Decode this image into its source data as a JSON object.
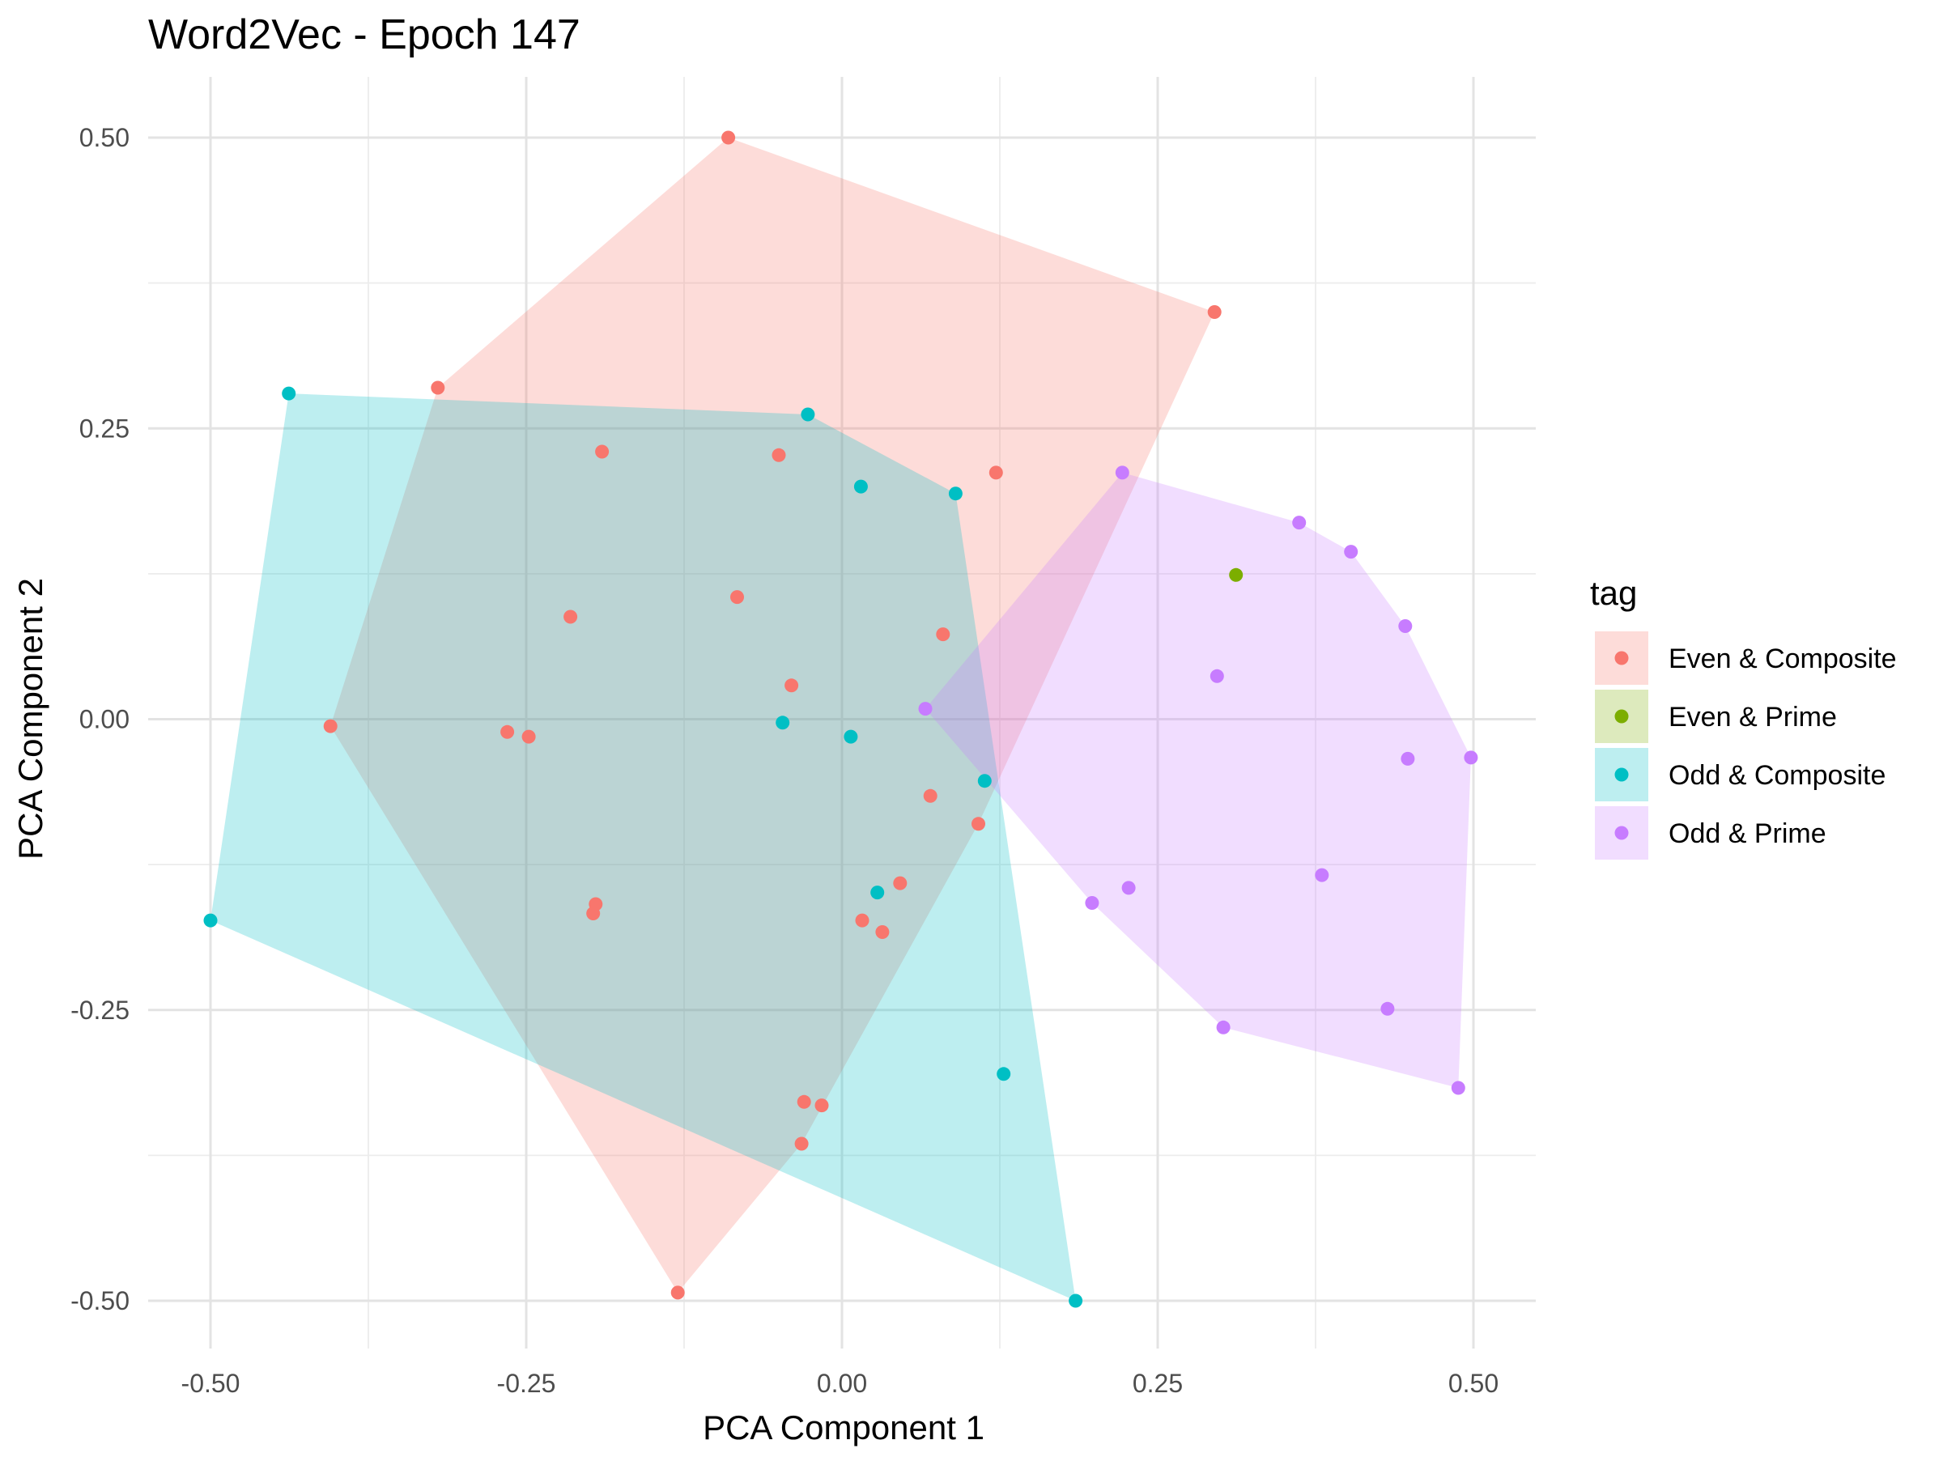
{
  "chart_data": {
    "type": "scatter",
    "title": "Word2Vec - Epoch 147",
    "xlabel": "PCA Component 1",
    "ylabel": "PCA Component 2",
    "xlim": [
      -0.55,
      0.55
    ],
    "ylim": [
      -0.54,
      0.55
    ],
    "x_ticks": [
      -0.5,
      -0.25,
      0.0,
      0.25,
      0.5
    ],
    "x_tick_labels": [
      "-0.50",
      "-0.25",
      "0.00",
      "0.25",
      "0.50"
    ],
    "y_ticks": [
      -0.5,
      -0.25,
      0.0,
      0.25,
      0.5
    ],
    "y_tick_labels": [
      "-0.50",
      "-0.25",
      "0.00",
      "0.25",
      "0.50"
    ],
    "grid": true,
    "legend": {
      "title": "tag",
      "position": "right"
    },
    "series": [
      {
        "name": "Even & Composite",
        "color": "#F8766D",
        "hull": true,
        "points": [
          [
            -0.09,
            0.5
          ],
          [
            0.295,
            0.35
          ],
          [
            -0.32,
            0.285
          ],
          [
            -0.19,
            0.23
          ],
          [
            -0.05,
            0.227
          ],
          [
            0.122,
            0.212
          ],
          [
            -0.083,
            0.105
          ],
          [
            -0.215,
            0.088
          ],
          [
            0.08,
            0.073
          ],
          [
            -0.04,
            0.029
          ],
          [
            -0.405,
            -0.006
          ],
          [
            -0.265,
            -0.011
          ],
          [
            -0.248,
            -0.015
          ],
          [
            0.07,
            -0.066
          ],
          [
            0.108,
            -0.09
          ],
          [
            0.046,
            -0.141
          ],
          [
            -0.195,
            -0.159
          ],
          [
            -0.197,
            -0.167
          ],
          [
            0.016,
            -0.173
          ],
          [
            0.032,
            -0.183
          ],
          [
            -0.03,
            -0.329
          ],
          [
            -0.016,
            -0.332
          ],
          [
            -0.032,
            -0.365
          ],
          [
            -0.13,
            -0.493
          ]
        ]
      },
      {
        "name": "Even & Prime",
        "color": "#7CAE00",
        "hull": false,
        "points": [
          [
            0.312,
            0.124
          ]
        ]
      },
      {
        "name": "Odd & Composite",
        "color": "#00BFC4",
        "hull": true,
        "points": [
          [
            -0.438,
            0.28
          ],
          [
            -0.027,
            0.262
          ],
          [
            0.015,
            0.2
          ],
          [
            0.09,
            0.194
          ],
          [
            -0.047,
            -0.003
          ],
          [
            0.007,
            -0.015
          ],
          [
            0.113,
            -0.053
          ],
          [
            0.028,
            -0.149
          ],
          [
            -0.5,
            -0.173
          ],
          [
            0.128,
            -0.305
          ],
          [
            0.185,
            -0.5
          ]
        ]
      },
      {
        "name": "Odd & Prime",
        "color": "#C77CFF",
        "hull": true,
        "points": [
          [
            0.222,
            0.212
          ],
          [
            0.362,
            0.169
          ],
          [
            0.403,
            0.144
          ],
          [
            0.446,
            0.08
          ],
          [
            0.297,
            0.037
          ],
          [
            0.066,
            0.009
          ],
          [
            0.448,
            -0.034
          ],
          [
            0.498,
            -0.033
          ],
          [
            0.38,
            -0.134
          ],
          [
            0.198,
            -0.158
          ],
          [
            0.227,
            -0.145
          ],
          [
            0.302,
            -0.265
          ],
          [
            0.432,
            -0.249
          ],
          [
            0.488,
            -0.317
          ]
        ]
      }
    ]
  }
}
